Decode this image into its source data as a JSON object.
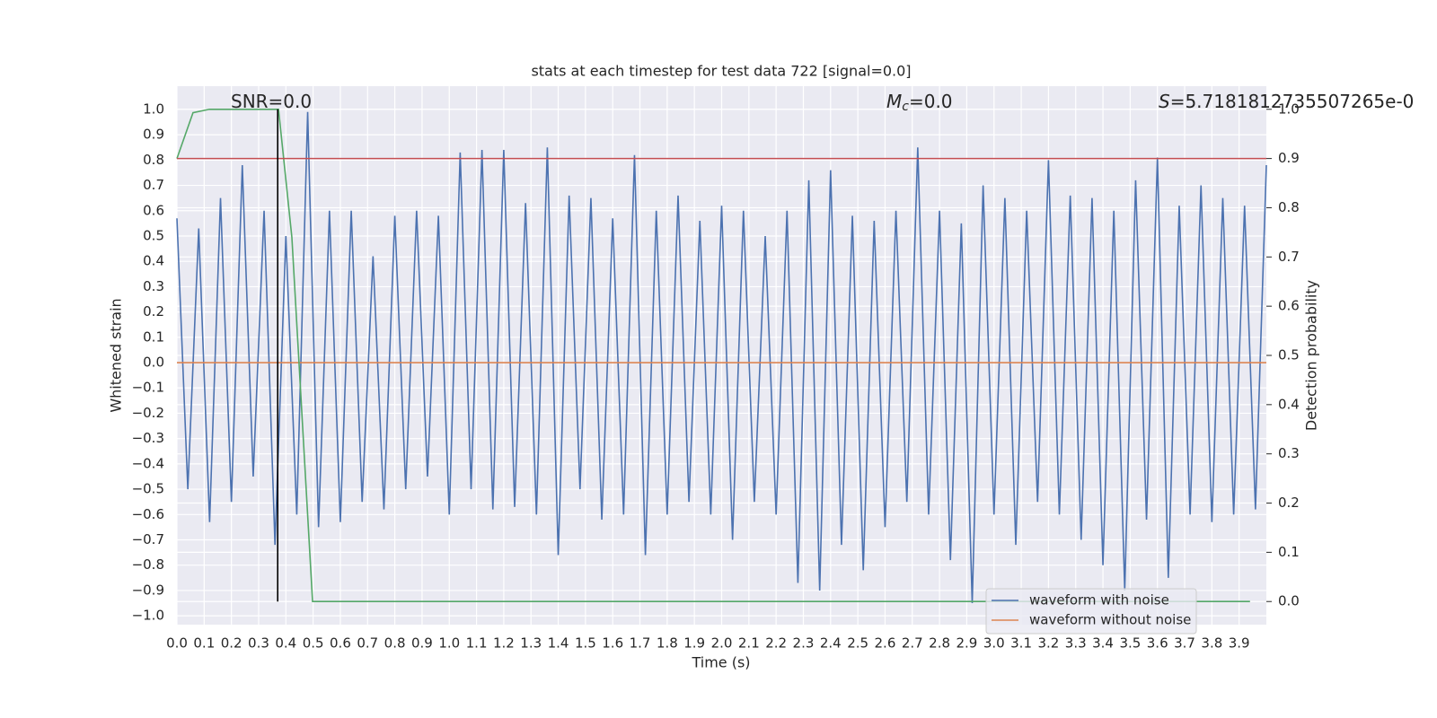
{
  "chart_data": {
    "type": "line",
    "title": "stats at each timestep for test data 722 [signal=0.0]",
    "xlabel": "Time (s)",
    "ylabel": "Whitened strain",
    "y2label": "Detection probability",
    "annotations": [
      {
        "text": "SNR=0.0"
      },
      {
        "symbol": "M",
        "subscript": "c",
        "text": "=0.0"
      },
      {
        "symbol": "S",
        "text": "=5.7181812735507265e-0"
      }
    ],
    "xlim": [
      0,
      4.0
    ],
    "ylim": [
      -1.035,
      1.092
    ],
    "y2lim": [
      -0.047,
      1.047
    ],
    "xticks": [
      {
        "value": 0,
        "label": "0.0"
      },
      0.1,
      0.2,
      0.3,
      0.4,
      0.5,
      0.6,
      0.7,
      0.8,
      0.9,
      {
        "value": 1,
        "label": "1.0"
      },
      1.1,
      1.2,
      1.3,
      1.4,
      1.5,
      1.6,
      1.7,
      1.8,
      1.9,
      {
        "value": 2,
        "label": "2.0"
      },
      2.1,
      2.2,
      2.3,
      2.4,
      2.5,
      2.6,
      2.7,
      2.8,
      2.9,
      {
        "value": 3,
        "label": "3.0"
      },
      3.1,
      3.2,
      3.3,
      3.4,
      3.5,
      3.6,
      3.7,
      3.8,
      3.9
    ],
    "yticks": [
      {
        "value": 1,
        "label": "1.0"
      },
      0.9,
      0.8,
      0.7,
      0.6,
      0.5,
      0.4,
      0.3,
      0.2,
      0.1,
      {
        "value": 0,
        "label": "0.0"
      },
      {
        "value": -0.1,
        "label": "−0.1"
      },
      {
        "value": -0.2,
        "label": "−0.2"
      },
      {
        "value": -0.3,
        "label": "−0.3"
      },
      {
        "value": -0.4,
        "label": "−0.4"
      },
      {
        "value": -0.5,
        "label": "−0.5"
      },
      {
        "value": -0.6,
        "label": "−0.6"
      },
      {
        "value": -0.7,
        "label": "−0.7"
      },
      {
        "value": -0.8,
        "label": "−0.8"
      },
      {
        "value": -0.9,
        "label": "−0.9"
      },
      {
        "value": -1,
        "label": "−1.0"
      }
    ],
    "y2ticks": [
      {
        "value": 0,
        "label": "0.0"
      },
      0.1,
      0.2,
      0.3,
      0.4,
      0.5,
      0.6,
      0.7,
      0.8,
      0.9,
      {
        "value": 1,
        "label": "1.0"
      }
    ],
    "grid": true,
    "legend": "lower right",
    "series": [
      {
        "name": "waveform with noise",
        "color": "#4c72b0",
        "x": [
          0,
          0.04,
          0.08,
          0.12,
          0.16,
          0.2,
          0.24,
          0.28,
          0.32,
          0.36,
          0.4,
          0.44,
          0.48,
          0.52,
          0.56,
          0.6,
          0.64,
          0.68,
          0.72,
          0.76,
          0.8,
          0.84,
          0.88,
          0.92,
          0.96,
          1,
          1.04,
          1.08,
          1.12,
          1.16,
          1.2,
          1.24,
          1.28,
          1.32,
          1.36,
          1.4,
          1.44,
          1.48,
          1.52,
          1.56,
          1.6,
          1.64,
          1.68,
          1.72,
          1.76,
          1.8,
          1.84,
          1.88,
          1.92,
          1.96,
          2,
          2.04,
          2.08,
          2.12,
          2.16,
          2.2,
          2.24,
          2.28,
          2.32,
          2.36,
          2.4,
          2.44,
          2.48,
          2.52,
          2.56,
          2.6,
          2.64,
          2.68,
          2.72,
          2.76,
          2.8,
          2.84,
          2.88,
          2.92,
          2.96,
          3,
          3.04,
          3.08,
          3.12,
          3.16,
          3.2,
          3.24,
          3.28,
          3.32,
          3.36,
          3.4,
          3.44,
          3.48,
          3.52,
          3.56,
          3.6,
          3.64,
          3.68,
          3.72,
          3.76,
          3.8,
          3.84,
          3.88,
          3.92,
          3.96,
          4
        ],
        "values": [
          0.57,
          -0.5,
          0.53,
          -0.63,
          0.65,
          -0.55,
          0.78,
          -0.45,
          0.6,
          -0.72,
          0.5,
          -0.6,
          0.99,
          -0.65,
          0.6,
          -0.63,
          0.6,
          -0.55,
          0.42,
          -0.58,
          0.58,
          -0.5,
          0.6,
          -0.45,
          0.58,
          -0.6,
          0.83,
          -0.5,
          0.84,
          -0.58,
          0.84,
          -0.57,
          0.63,
          -0.6,
          0.85,
          -0.76,
          0.66,
          -0.5,
          0.65,
          -0.62,
          0.57,
          -0.6,
          0.82,
          -0.76,
          0.6,
          -0.6,
          0.66,
          -0.55,
          0.56,
          -0.6,
          0.62,
          -0.7,
          0.6,
          -0.55,
          0.5,
          -0.6,
          0.6,
          -0.87,
          0.72,
          -0.9,
          0.76,
          -0.72,
          0.58,
          -0.82,
          0.56,
          -0.65,
          0.6,
          -0.55,
          0.85,
          -0.6,
          0.6,
          -0.78,
          0.55,
          -0.95,
          0.7,
          -0.6,
          0.65,
          -0.72,
          0.6,
          -0.55,
          0.8,
          -0.6,
          0.66,
          -0.7,
          0.65,
          -0.8,
          0.6,
          -0.9,
          0.72,
          -0.62,
          0.81,
          -0.85,
          0.62,
          -0.6,
          0.7,
          -0.63,
          0.65,
          -0.6,
          0.62,
          -0.58,
          0.78
        ]
      },
      {
        "name": "waveform without noise",
        "color": "#dd8452",
        "x": [
          0,
          4.0
        ],
        "values": [
          0,
          0
        ]
      },
      {
        "color": "#55a868",
        "axis": "y2",
        "x": [
          0,
          0.059,
          0.119,
          0.373,
          0.422,
          0.498,
          3.94
        ],
        "values": [
          0.9,
          0.993,
          1.0,
          1.0,
          0.74,
          0,
          0
        ]
      }
    ],
    "hlines": [
      {
        "value": 0.9,
        "axis": "y2",
        "color": "#c44e52"
      }
    ],
    "vlines": [
      {
        "x": 0.37,
        "y": [
          0,
          1
        ],
        "axis": "y2",
        "color": "#000000"
      }
    ]
  }
}
